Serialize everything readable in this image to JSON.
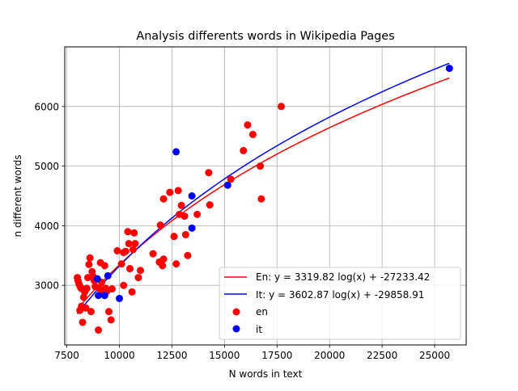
{
  "chart_data": {
    "type": "scatter",
    "title": "Analysis differents words in Wikipedia Pages",
    "xlabel": "N words in text",
    "ylabel": "n different words",
    "xlim": [
      7400,
      26500
    ],
    "ylim": [
      2000,
      7000
    ],
    "xticks": [
      7500,
      10000,
      12500,
      15000,
      17500,
      20000,
      22500,
      25000
    ],
    "yticks": [
      3000,
      4000,
      5000,
      6000
    ],
    "grid": true,
    "legend_position": "lower right",
    "fits": [
      {
        "name": "En: y = 3319.82 log(x) + -27233.42",
        "a": 3319.82,
        "b": -27233.42,
        "x_range": [
          8000,
          25700
        ],
        "color": "#ff0000"
      },
      {
        "name": "It: y = 3602.87 log(x) + -29858.91",
        "a": 3602.87,
        "b": -29858.91,
        "x_range": [
          8000,
          25700
        ],
        "color": "#0000ff"
      }
    ],
    "series": [
      {
        "name": "en",
        "color": "#ff0000",
        "points": [
          [
            8000,
            3130
          ],
          [
            8030,
            3080
          ],
          [
            8080,
            3020
          ],
          [
            8130,
            2980
          ],
          [
            8180,
            2950
          ],
          [
            8120,
            2580
          ],
          [
            8200,
            2650
          ],
          [
            8250,
            2380
          ],
          [
            8300,
            2800
          ],
          [
            8350,
            2890
          ],
          [
            8400,
            2620
          ],
          [
            8450,
            2950
          ],
          [
            8500,
            3130
          ],
          [
            8550,
            3350
          ],
          [
            8600,
            3460
          ],
          [
            8650,
            2560
          ],
          [
            8700,
            3230
          ],
          [
            8750,
            3150
          ],
          [
            8800,
            3080
          ],
          [
            8850,
            2980
          ],
          [
            8900,
            3100
          ],
          [
            9000,
            2250
          ],
          [
            9050,
            2950
          ],
          [
            9100,
            3380
          ],
          [
            9150,
            3050
          ],
          [
            9200,
            2870
          ],
          [
            9300,
            3330
          ],
          [
            9350,
            2950
          ],
          [
            9400,
            2900
          ],
          [
            9500,
            2560
          ],
          [
            9600,
            2420
          ],
          [
            9650,
            2940
          ],
          [
            9900,
            3580
          ],
          [
            10100,
            3360
          ],
          [
            10200,
            3000
          ],
          [
            10200,
            3550
          ],
          [
            10300,
            3570
          ],
          [
            10400,
            3900
          ],
          [
            10450,
            3700
          ],
          [
            10500,
            3280
          ],
          [
            10600,
            2890
          ],
          [
            10650,
            3600
          ],
          [
            10700,
            3880
          ],
          [
            10750,
            3700
          ],
          [
            10900,
            3130
          ],
          [
            11000,
            3250
          ],
          [
            11600,
            3530
          ],
          [
            11900,
            3390
          ],
          [
            11950,
            4010
          ],
          [
            12050,
            3330
          ],
          [
            12100,
            3440
          ],
          [
            12100,
            4450
          ],
          [
            12400,
            4560
          ],
          [
            12600,
            3820
          ],
          [
            12700,
            3360
          ],
          [
            12800,
            4590
          ],
          [
            12850,
            4190
          ],
          [
            12950,
            4340
          ],
          [
            13100,
            4160
          ],
          [
            13150,
            3850
          ],
          [
            13250,
            3500
          ],
          [
            13700,
            4190
          ],
          [
            14250,
            4890
          ],
          [
            14300,
            4350
          ],
          [
            15300,
            4780
          ],
          [
            15900,
            5260
          ],
          [
            16100,
            5690
          ],
          [
            16350,
            5530
          ],
          [
            16700,
            5000
          ],
          [
            16750,
            4450
          ],
          [
            17700,
            6000
          ]
        ]
      },
      {
        "name": "it",
        "color": "#0000ff",
        "points": [
          [
            8950,
            3110
          ],
          [
            9000,
            2830
          ],
          [
            9300,
            2830
          ],
          [
            9450,
            3160
          ],
          [
            10000,
            2780
          ],
          [
            12700,
            5240
          ],
          [
            13450,
            4500
          ],
          [
            13450,
            3960
          ],
          [
            15150,
            4680
          ],
          [
            25700,
            6640
          ]
        ]
      }
    ]
  }
}
